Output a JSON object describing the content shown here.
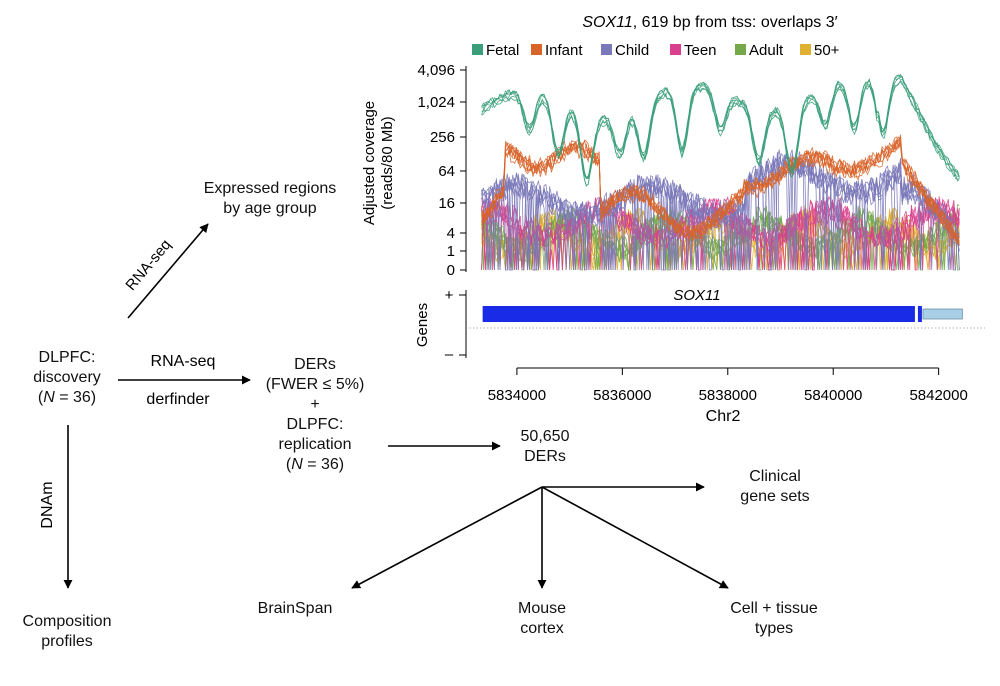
{
  "flow": {
    "discovery": {
      "line1": "DLPFC:",
      "line2": "discovery",
      "line3_pre": "(",
      "line3_n": "N",
      "line3_post": " = 36)"
    },
    "expressed": {
      "line1": "Expressed regions",
      "line2": "by age group"
    },
    "ders": {
      "line1": "DERs",
      "line2": "(FWER ≤ 5%)",
      "plus": "+",
      "line3": "DLPFC:",
      "line4": "replication",
      "line5_pre": "(",
      "line5_n": "N",
      "line5_post": " = 36)"
    },
    "ders_count": {
      "line1": "50,650",
      "line2": "DERs"
    },
    "composition": {
      "line1": "Composition",
      "line2": "profiles"
    },
    "clinical": {
      "line1": "Clinical",
      "line2": "gene sets"
    },
    "brainspan": "BrainSpan",
    "mouse": {
      "line1": "Mouse",
      "line2": "cortex"
    },
    "cell": {
      "line1": "Cell + tissue",
      "line2": "types"
    },
    "edges": {
      "rnaseq_diag": "RNA-seq",
      "rnaseq_horiz": "RNA-seq",
      "derfinder": "derfinder",
      "dnam": "DNAm"
    }
  },
  "chart_data": {
    "type": "line",
    "title_gene": "SOX11",
    "title_rest": ", 619 bp from tss: overlaps 3′",
    "ylabel_line1": "Adjusted coverage",
    "ylabel_line2": "(reads/80 Mb)",
    "yticks": [
      "4,096",
      "1,024",
      "256",
      "64",
      "16",
      "4",
      "1",
      "0"
    ],
    "ytick_values": [
      4096,
      1024,
      256,
      64,
      16,
      4,
      1,
      0
    ],
    "y_scale": "log2(x+1)",
    "xlim": [
      5833300,
      5842500
    ],
    "xticks": [
      "5834000",
      "5836000",
      "5838000",
      "5840000",
      "5842000"
    ],
    "xtick_values": [
      5834000,
      5836000,
      5838000,
      5840000,
      5842000
    ],
    "xlabel": "Chr2",
    "legend_placement": "top",
    "series": [
      {
        "name": "Fetal",
        "color": "#3a9e7a",
        "approx_level": 1024
      },
      {
        "name": "Infant",
        "color": "#d8642a",
        "approx_level": 64
      },
      {
        "name": "Child",
        "color": "#7a78b8",
        "approx_level": 16
      },
      {
        "name": "Teen",
        "color": "#d93f8c",
        "approx_level": 6
      },
      {
        "name": "Adult",
        "color": "#74a84a",
        "approx_level": 4
      },
      {
        "name": "50+",
        "color": "#e0b030",
        "approx_level": 3
      }
    ],
    "genes_track": {
      "label": "Genes",
      "plus": "+",
      "minus": "–",
      "gene_name": "SOX11",
      "gene_color": "#1a2be8",
      "utr_color": "#a9cfe6",
      "exon_start": 5833350,
      "exon_end": 5841550,
      "utr_end": 5842450
    }
  }
}
